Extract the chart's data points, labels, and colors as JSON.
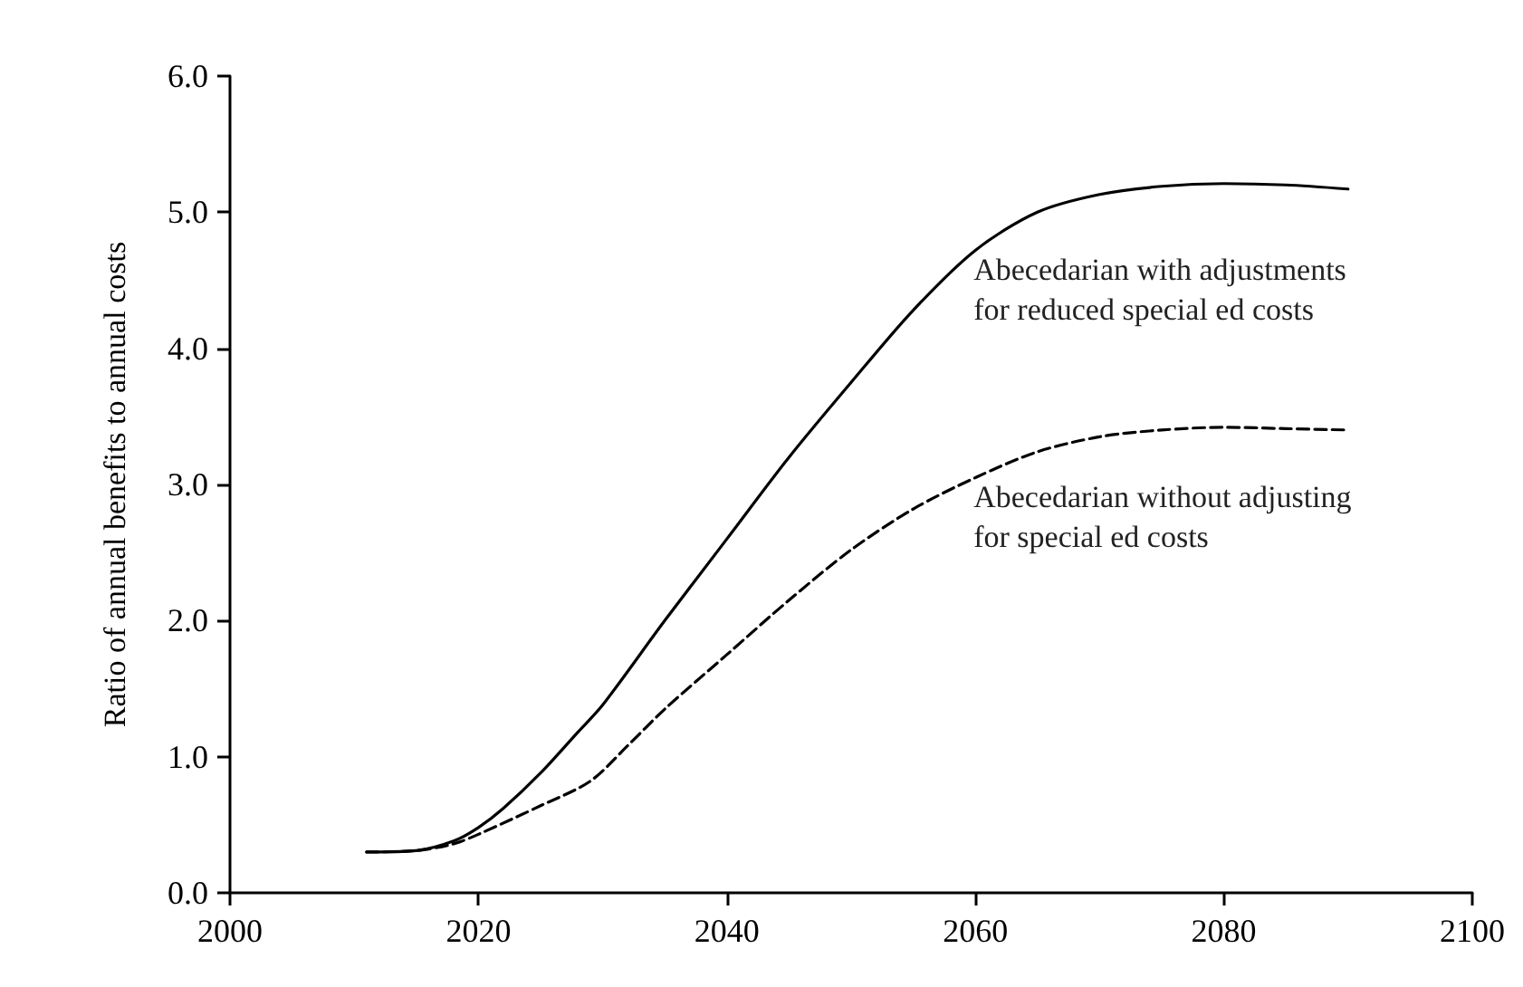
{
  "chart_data": {
    "type": "line",
    "ylabel": "Ratio of annual benefits to annual costs",
    "series": [
      {
        "name": "Abecedarian with adjustments for reduced special ed costs",
        "color": "#000000",
        "line_style": "solid",
        "x": [
          2011,
          2015,
          2018,
          2020,
          2022,
          2025,
          2028,
          2030,
          2035,
          2040,
          2045,
          2050,
          2055,
          2060,
          2065,
          2070,
          2075,
          2080,
          2085,
          2090
        ],
        "values": [
          0.3,
          0.31,
          0.38,
          0.48,
          0.62,
          0.88,
          1.18,
          1.38,
          2.0,
          2.6,
          3.2,
          3.75,
          4.28,
          4.72,
          5.0,
          5.13,
          5.19,
          5.21,
          5.2,
          5.17
        ]
      },
      {
        "name": "Abecedarian without adjusting for special ed costs",
        "color": "#000000",
        "line_style": "dashed",
        "x": [
          2011,
          2015,
          2018,
          2020,
          2025,
          2029,
          2032,
          2035,
          2040,
          2045,
          2050,
          2055,
          2060,
          2065,
          2070,
          2075,
          2080,
          2085,
          2090
        ],
        "values": [
          0.3,
          0.31,
          0.36,
          0.43,
          0.64,
          0.82,
          1.08,
          1.35,
          1.75,
          2.15,
          2.52,
          2.82,
          3.05,
          3.24,
          3.35,
          3.4,
          3.42,
          3.41,
          3.4
        ]
      }
    ],
    "xlim": [
      2000,
      2100
    ],
    "xticks": [
      2000,
      2020,
      2040,
      2060,
      2080,
      2100
    ],
    "ylim": [
      0,
      6
    ],
    "yticks": [
      {
        "value": 0,
        "label": "0.0"
      },
      {
        "value": 1,
        "label": "1.0"
      },
      {
        "value": 2,
        "label": "2.0"
      },
      {
        "value": 3,
        "label": "3.0"
      },
      {
        "value": 4,
        "label": "4.0"
      },
      {
        "value": 5,
        "label": "5.0"
      },
      {
        "value": 6,
        "label": "6.0"
      }
    ],
    "grid": false,
    "legend": false,
    "marker": "none"
  }
}
